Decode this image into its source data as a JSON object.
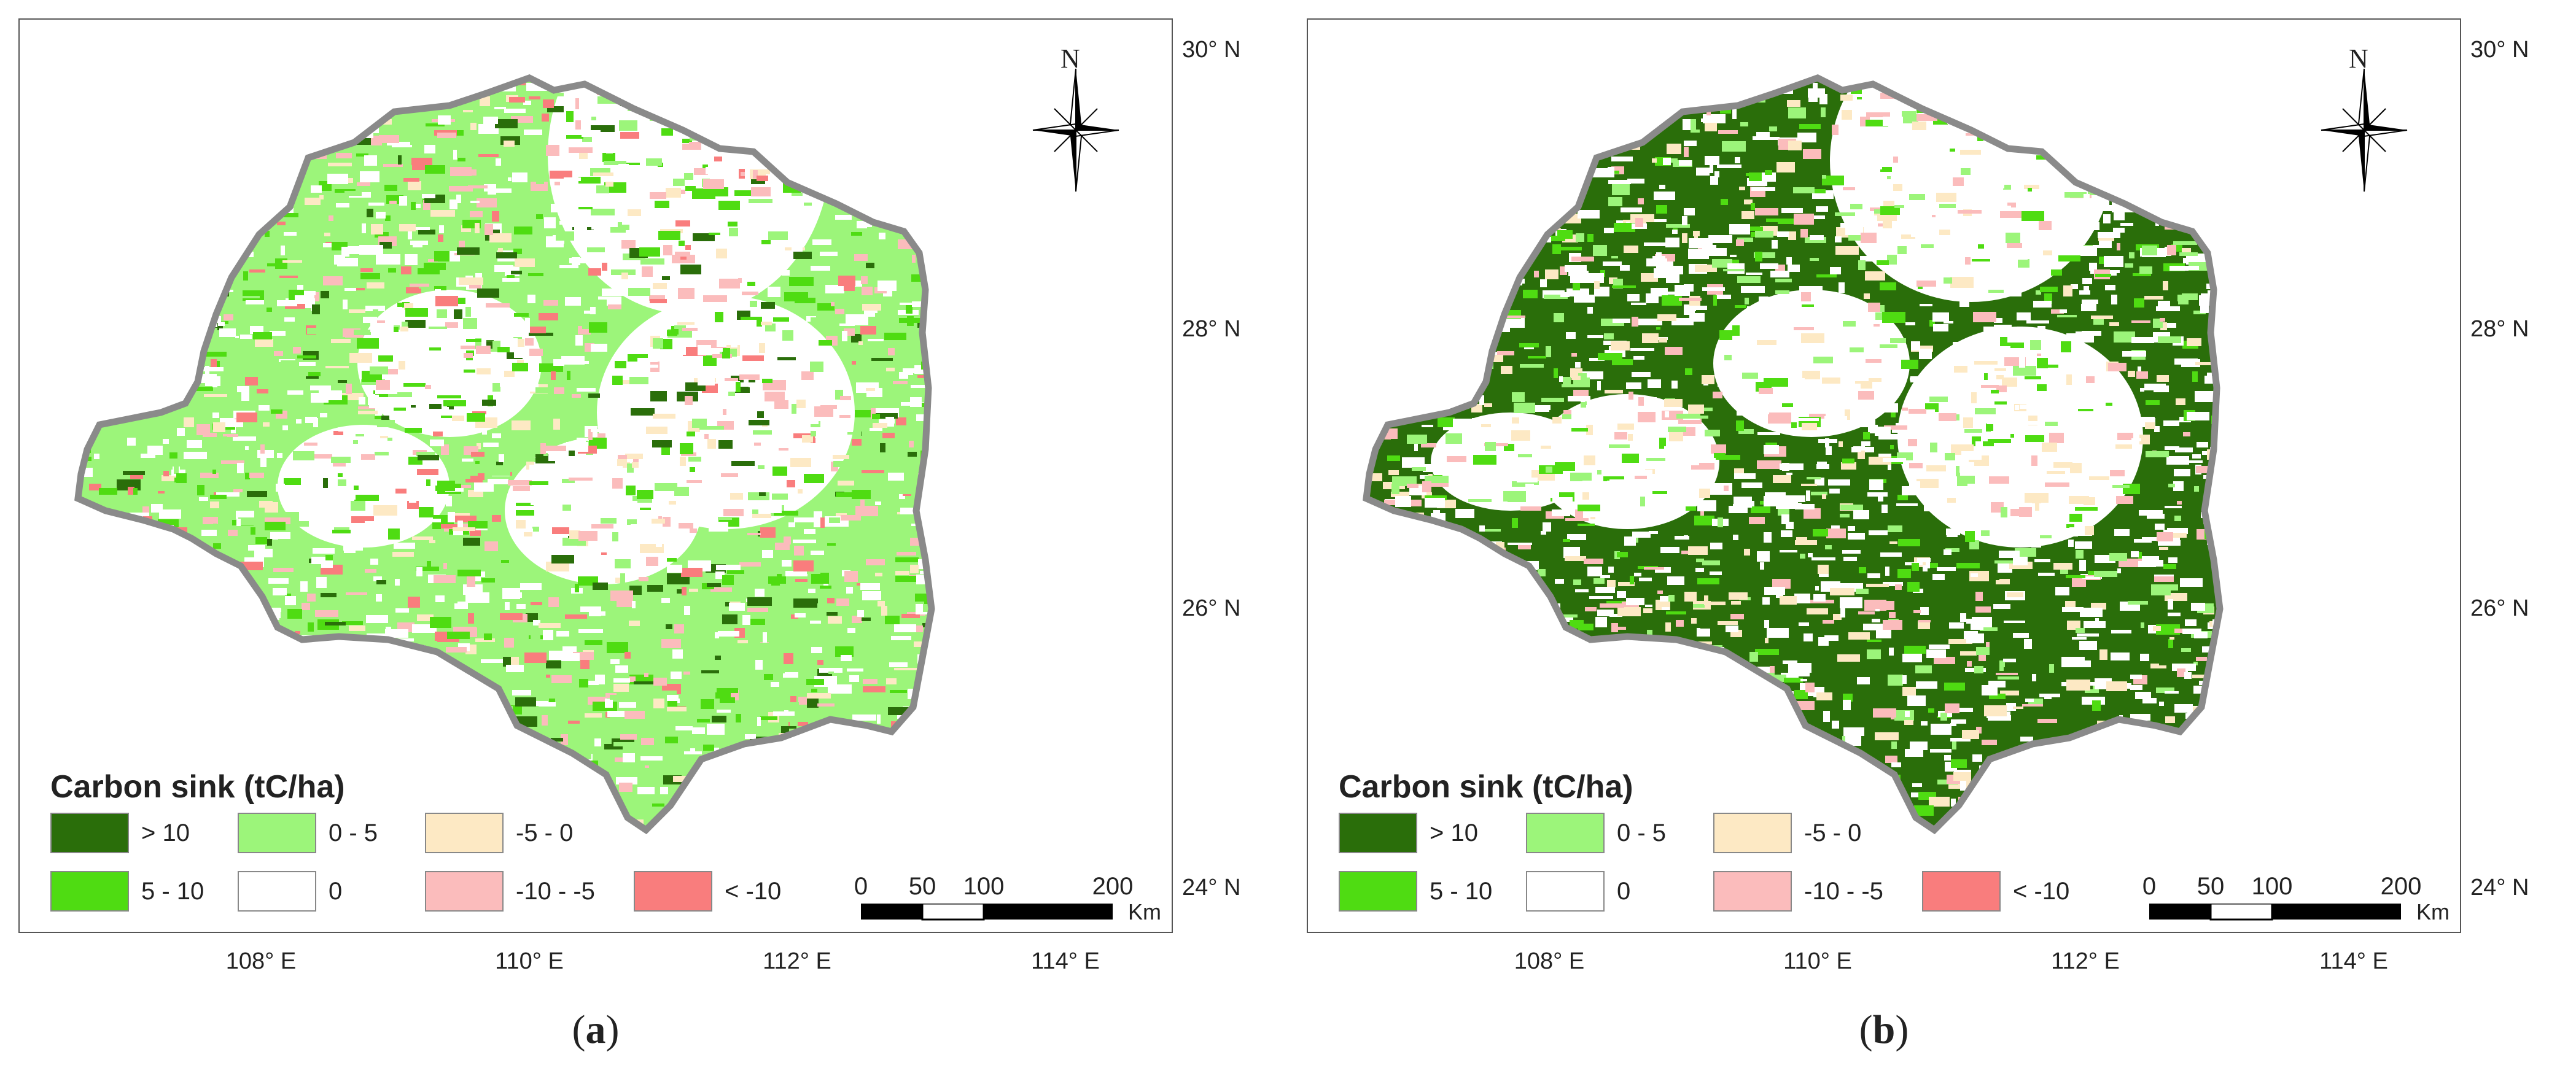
{
  "legend": {
    "title": "Carbon sink (tC/ha)",
    "classes": [
      {
        "label": "> 10",
        "color": "#2a6e0a"
      },
      {
        "label": "0 - 5",
        "color": "#9cf57a"
      },
      {
        "label": "-5 - 0",
        "color": "#fde9c4"
      },
      {
        "label": "5 - 10",
        "color": "#4fdc12"
      },
      {
        "label": "0",
        "color": "#ffffff"
      },
      {
        "label": "-10 - -5",
        "color": "#fbbcbc"
      },
      {
        "label": "< -10",
        "color": "#f97d7d"
      }
    ]
  },
  "lat_labels": [
    "30° N",
    "28° N",
    "26° N",
    "24° N"
  ],
  "lon_labels": [
    "108° E",
    "110° E",
    "112° E",
    "114° E"
  ],
  "scale_bar": {
    "ticks": [
      "0",
      "50",
      "100",
      "200"
    ],
    "unit": "Km"
  },
  "north_arrow": {
    "label": "N",
    "icon": "north-arrow-compass-icon"
  },
  "panels": [
    {
      "id": "a",
      "caption_open": "(",
      "caption_letter": "a",
      "caption_close": ")",
      "dominant_fill": "#9cf57a"
    },
    {
      "id": "b",
      "caption_open": "(",
      "caption_letter": "b",
      "caption_close": ")",
      "dominant_fill": "#2a6e0a"
    }
  ],
  "colors": {
    "boundary": "#8a8a8a",
    "frame": "#555555"
  }
}
